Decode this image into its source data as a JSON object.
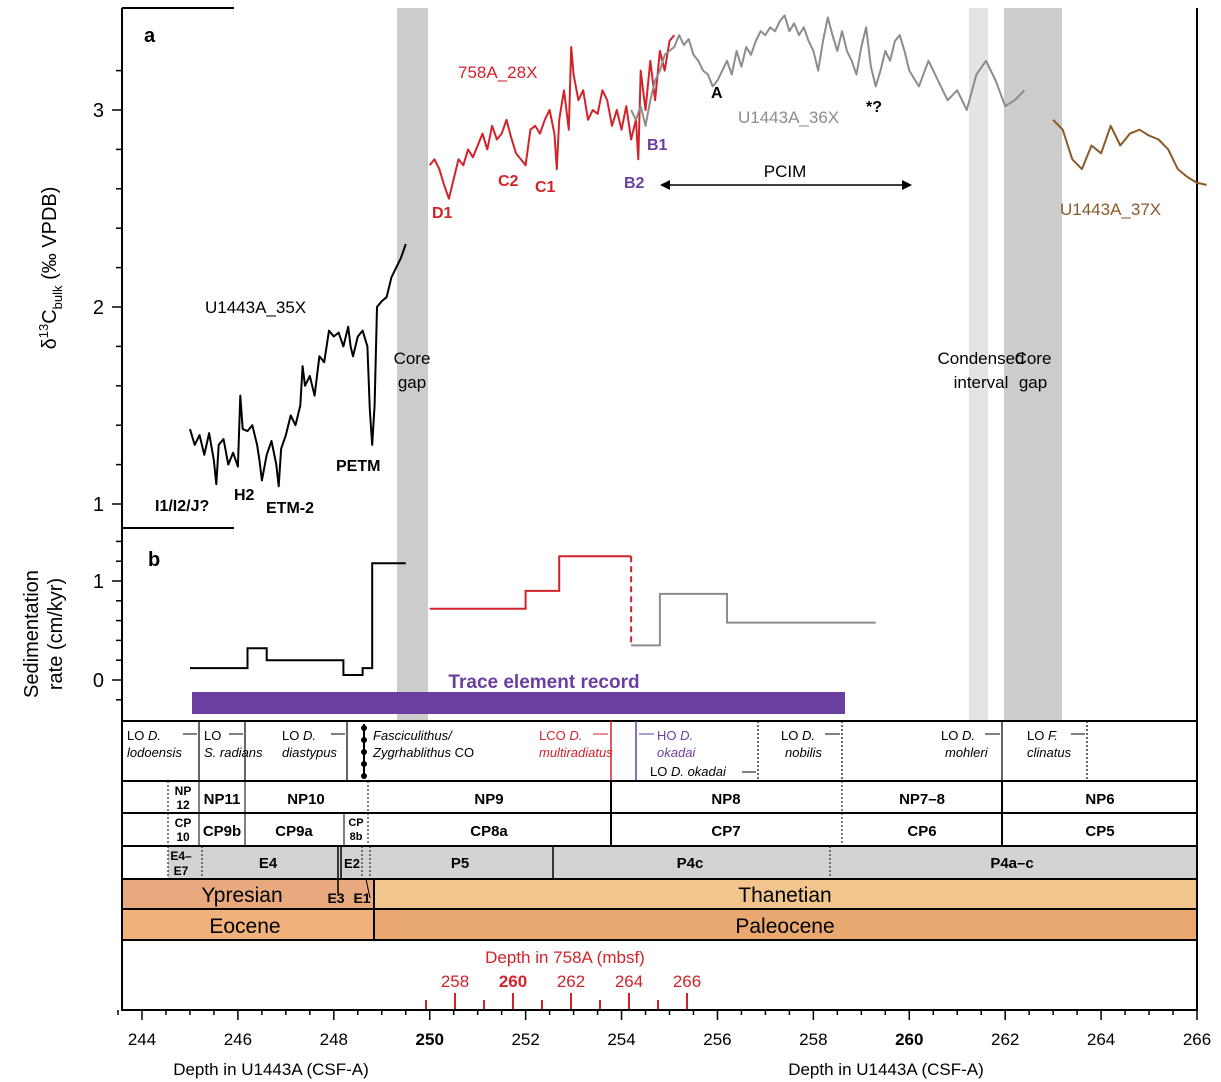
{
  "colors": {
    "black": "#000000",
    "red": "#d2232a",
    "grey": "#8c8c8c",
    "brown": "#8b5a2b",
    "purple": "#6b3fa0",
    "gap": "#cccccc",
    "condensed": "#e4e4e4",
    "biozone_fill": "#d3d3d3",
    "ypresian": "#e8a97e",
    "thanetian": "#f2c58c",
    "eocene": "#f0b27a",
    "paleocene": "#e8a870"
  },
  "labels": {
    "panel_a": "a",
    "panel_b": "b",
    "y_axis_a": "δ13Cbulk (‰ VPDB)",
    "y_axis_a_main": "δ",
    "y_axis_a_sup": "13",
    "y_axis_a_c": "C",
    "y_axis_a_sub": "bulk",
    "y_axis_a_unit": " (‰ VPDB)",
    "y_axis_b_line1": "Sedimentation",
    "y_axis_b_line2": "rate (cm/kyr)",
    "x_axis_left": "Depth in U1443A (CSF-A)",
    "x_axis_right": "Depth in U1443A (CSF-A)",
    "depth_758A": "Depth in 758A (mbsf)",
    "core_gap_1a": "Core",
    "core_gap_1b": "gap",
    "condensed_a": "Condensed",
    "condensed_b": "interval",
    "core_gap_2a": "Core",
    "core_gap_2b": "gap",
    "trace": "Trace element record",
    "pcim": "PCIM"
  },
  "events": {
    "I1": "I1/I2/J?",
    "H2": "H2",
    "ETM2": "ETM-2",
    "PETM": "PETM",
    "D1": "D1",
    "C2": "C2",
    "C1": "C1",
    "B2": "B2",
    "B1": "B1",
    "A": "A",
    "star": "*?"
  },
  "series_labels": {
    "s35": "U1443A_35X",
    "s28": "758A_28X",
    "s36": "U1443A_36X",
    "s37": "U1443A_37X"
  },
  "nanno_events": {
    "lodoensis_lo": "LO ",
    "lodoensis_sp": "D.",
    "lodoensis_sp2": "lodoensis",
    "radians_lo": "LO",
    "radians_sp": "S. radians",
    "diastypus_lo": "LO ",
    "diastypus_sp": "D.",
    "diastypus_sp2": "diastypus",
    "co_sp": "Fasciculithus/",
    "co_sp2": "Zygrhablithus",
    "co_tail": " CO",
    "mult_lco": "LCO ",
    "mult_sp": "D.",
    "mult_sp2": "multiradiatus",
    "okadai_ho": "HO ",
    "okadai_sp": "D.",
    "okadai_sp2": "okadai",
    "okadai_lo": "LO ",
    "okadai_lo_sp": "D. okadai",
    "nobilis_lo": "LO ",
    "nobilis_sp": "D.",
    "nobilis_sp2": "nobilis",
    "mohleri_lo": "LO ",
    "mohleri_sp": "D.",
    "mohleri_sp2": "mohleri",
    "clinatus_lo": "LO ",
    "clinatus_sp": "F.",
    "clinatus_sp2": "clinatus"
  },
  "zones": {
    "np": [
      "NP",
      "12",
      "NP11",
      "NP10",
      "NP9",
      "NP8",
      "NP7–8",
      "NP6"
    ],
    "cp": [
      "CP",
      "10",
      "CP9b",
      "CP9a",
      "CP",
      "8b",
      "CP8a",
      "CP7",
      "CP6",
      "CP5"
    ],
    "p": [
      "E4–",
      "E7",
      "E4",
      "E2",
      "P5",
      "P4c",
      "P4a–c"
    ],
    "stage": [
      "Ypresian",
      "E3",
      "E1",
      "Thanetian"
    ],
    "epoch": [
      "Eocene",
      "Paleocene"
    ]
  },
  "chart_data": [
    {
      "type": "line",
      "panel": "a",
      "xlabel": "Depth in U1443A (CSF-A)",
      "ylabel": "δ13Cbulk (‰ VPDB)",
      "xlim": [
        243.5,
        266
      ],
      "ylim": [
        0.9,
        3.5
      ],
      "x_ticks": [
        244,
        246,
        248,
        250,
        252,
        254,
        256,
        258,
        260,
        262,
        264,
        266
      ],
      "y_ticks": [
        1,
        2,
        3
      ],
      "series": [
        {
          "name": "U1443A_35X",
          "color": "#000000",
          "points": [
            [
              245.0,
              1.38
            ],
            [
              245.1,
              1.3
            ],
            [
              245.2,
              1.35
            ],
            [
              245.3,
              1.25
            ],
            [
              245.4,
              1.36
            ],
            [
              245.5,
              1.22
            ],
            [
              245.55,
              1.1
            ],
            [
              245.6,
              1.3
            ],
            [
              245.7,
              1.33
            ],
            [
              245.8,
              1.2
            ],
            [
              245.9,
              1.26
            ],
            [
              246.0,
              1.19
            ],
            [
              246.05,
              1.55
            ],
            [
              246.1,
              1.38
            ],
            [
              246.2,
              1.37
            ],
            [
              246.3,
              1.4
            ],
            [
              246.4,
              1.3
            ],
            [
              246.45,
              1.22
            ],
            [
              246.5,
              1.12
            ],
            [
              246.6,
              1.25
            ],
            [
              246.7,
              1.32
            ],
            [
              246.8,
              1.2
            ],
            [
              246.85,
              1.09
            ],
            [
              246.9,
              1.28
            ],
            [
              247.0,
              1.35
            ],
            [
              247.1,
              1.45
            ],
            [
              247.2,
              1.4
            ],
            [
              247.3,
              1.5
            ],
            [
              247.35,
              1.7
            ],
            [
              247.4,
              1.6
            ],
            [
              247.5,
              1.65
            ],
            [
              247.6,
              1.55
            ],
            [
              247.7,
              1.75
            ],
            [
              247.8,
              1.72
            ],
            [
              247.9,
              1.88
            ],
            [
              248.0,
              1.85
            ],
            [
              248.1,
              1.87
            ],
            [
              248.2,
              1.8
            ],
            [
              248.3,
              1.9
            ],
            [
              248.35,
              1.8
            ],
            [
              248.4,
              1.75
            ],
            [
              248.5,
              1.85
            ],
            [
              248.6,
              1.88
            ],
            [
              248.7,
              1.8
            ],
            [
              248.75,
              1.48
            ],
            [
              248.8,
              1.3
            ],
            [
              248.85,
              1.5
            ],
            [
              248.9,
              2.0
            ],
            [
              249.0,
              2.03
            ],
            [
              249.1,
              2.05
            ],
            [
              249.2,
              2.15
            ],
            [
              249.3,
              2.2
            ],
            [
              249.4,
              2.25
            ],
            [
              249.5,
              2.32
            ]
          ]
        },
        {
          "name": "758A_28X",
          "color": "#d2232a",
          "points": [
            [
              250.0,
              2.72
            ],
            [
              250.1,
              2.75
            ],
            [
              250.2,
              2.7
            ],
            [
              250.3,
              2.62
            ],
            [
              250.4,
              2.55
            ],
            [
              250.5,
              2.65
            ],
            [
              250.6,
              2.75
            ],
            [
              250.7,
              2.72
            ],
            [
              250.8,
              2.8
            ],
            [
              250.9,
              2.76
            ],
            [
              251.0,
              2.82
            ],
            [
              251.1,
              2.88
            ],
            [
              251.2,
              2.8
            ],
            [
              251.3,
              2.92
            ],
            [
              251.4,
              2.85
            ],
            [
              251.5,
              2.88
            ],
            [
              251.6,
              2.95
            ],
            [
              251.7,
              2.86
            ],
            [
              251.8,
              2.78
            ],
            [
              251.9,
              2.75
            ],
            [
              252.0,
              2.72
            ],
            [
              252.1,
              2.9
            ],
            [
              252.2,
              2.92
            ],
            [
              252.3,
              2.88
            ],
            [
              252.4,
              2.95
            ],
            [
              252.5,
              3.0
            ],
            [
              252.6,
              2.88
            ],
            [
              252.65,
              2.7
            ],
            [
              252.7,
              2.95
            ],
            [
              252.8,
              3.1
            ],
            [
              252.9,
              2.9
            ],
            [
              252.95,
              3.32
            ],
            [
              253.0,
              3.18
            ],
            [
              253.1,
              3.05
            ],
            [
              253.2,
              3.1
            ],
            [
              253.3,
              2.95
            ],
            [
              253.4,
              3.0
            ],
            [
              253.5,
              2.98
            ],
            [
              253.6,
              3.1
            ],
            [
              253.7,
              3.05
            ],
            [
              253.8,
              2.92
            ],
            [
              253.9,
              3.0
            ],
            [
              254.0,
              2.9
            ],
            [
              254.1,
              3.02
            ],
            [
              254.2,
              2.85
            ],
            [
              254.3,
              2.95
            ],
            [
              254.35,
              2.75
            ],
            [
              254.4,
              3.2
            ],
            [
              254.5,
              3.0
            ],
            [
              254.6,
              3.25
            ],
            [
              254.7,
              3.05
            ],
            [
              254.8,
              3.3
            ],
            [
              254.9,
              3.2
            ],
            [
              255.0,
              3.35
            ],
            [
              255.1,
              3.38
            ]
          ]
        },
        {
          "name": "U1443A_36X",
          "color": "#8c8c8c",
          "points": [
            [
              254.2,
              3.0
            ],
            [
              254.3,
              2.95
            ],
            [
              254.4,
              3.02
            ],
            [
              254.5,
              2.92
            ],
            [
              254.6,
              3.05
            ],
            [
              254.7,
              3.15
            ],
            [
              254.8,
              3.2
            ],
            [
              254.9,
              3.28
            ],
            [
              255.0,
              3.3
            ],
            [
              255.1,
              3.32
            ],
            [
              255.2,
              3.38
            ],
            [
              255.3,
              3.33
            ],
            [
              255.4,
              3.36
            ],
            [
              255.5,
              3.28
            ],
            [
              255.6,
              3.25
            ],
            [
              255.7,
              3.2
            ],
            [
              255.8,
              3.18
            ],
            [
              255.9,
              3.12
            ],
            [
              256.0,
              3.15
            ],
            [
              256.1,
              3.2
            ],
            [
              256.2,
              3.25
            ],
            [
              256.3,
              3.18
            ],
            [
              256.4,
              3.3
            ],
            [
              256.5,
              3.22
            ],
            [
              256.6,
              3.32
            ],
            [
              256.7,
              3.28
            ],
            [
              256.8,
              3.35
            ],
            [
              256.9,
              3.4
            ],
            [
              257.0,
              3.38
            ],
            [
              257.1,
              3.42
            ],
            [
              257.2,
              3.4
            ],
            [
              257.3,
              3.45
            ],
            [
              257.4,
              3.48
            ],
            [
              257.5,
              3.4
            ],
            [
              257.6,
              3.44
            ],
            [
              257.7,
              3.38
            ],
            [
              257.8,
              3.42
            ],
            [
              257.9,
              3.35
            ],
            [
              258.0,
              3.3
            ],
            [
              258.1,
              3.2
            ],
            [
              258.2,
              3.35
            ],
            [
              258.3,
              3.47
            ],
            [
              258.4,
              3.38
            ],
            [
              258.5,
              3.3
            ],
            [
              258.6,
              3.4
            ],
            [
              258.7,
              3.3
            ],
            [
              258.8,
              3.25
            ],
            [
              258.9,
              3.18
            ],
            [
              259.0,
              3.32
            ],
            [
              259.1,
              3.42
            ],
            [
              259.2,
              3.22
            ],
            [
              259.3,
              3.12
            ],
            [
              259.4,
              3.2
            ],
            [
              259.5,
              3.3
            ],
            [
              259.6,
              3.25
            ],
            [
              259.7,
              3.35
            ],
            [
              259.8,
              3.38
            ],
            [
              259.9,
              3.3
            ],
            [
              260.0,
              3.2
            ],
            [
              260.2,
              3.12
            ],
            [
              260.4,
              3.25
            ],
            [
              260.6,
              3.15
            ],
            [
              260.8,
              3.05
            ],
            [
              261.0,
              3.1
            ],
            [
              261.2,
              3.0
            ],
            [
              261.4,
              3.18
            ],
            [
              261.6,
              3.25
            ],
            [
              261.8,
              3.15
            ],
            [
              262.0,
              3.02
            ],
            [
              262.2,
              3.05
            ],
            [
              262.4,
              3.1
            ]
          ]
        },
        {
          "name": "U1443A_37X",
          "color": "#8b5a2b",
          "points": [
            [
              263.0,
              2.95
            ],
            [
              263.2,
              2.9
            ],
            [
              263.4,
              2.75
            ],
            [
              263.6,
              2.7
            ],
            [
              263.8,
              2.82
            ],
            [
              264.0,
              2.78
            ],
            [
              264.2,
              2.92
            ],
            [
              264.4,
              2.82
            ],
            [
              264.6,
              2.88
            ],
            [
              264.8,
              2.9
            ],
            [
              265.0,
              2.87
            ],
            [
              265.2,
              2.85
            ],
            [
              265.4,
              2.8
            ],
            [
              265.6,
              2.7
            ],
            [
              265.8,
              2.66
            ],
            [
              266.0,
              2.63
            ],
            [
              266.2,
              2.62
            ]
          ]
        }
      ]
    },
    {
      "type": "line",
      "panel": "b",
      "xlabel": "Depth in U1443A (CSF-A)",
      "ylabel": "Sedimentation rate (cm/kyr)",
      "ylim": [
        -0.2,
        1.5
      ],
      "y_ticks": [
        0,
        1
      ],
      "series": [
        {
          "name": "U1443A_35X",
          "color": "#000000",
          "points": [
            [
              245.0,
              0.12
            ],
            [
              246.2,
              0.12
            ],
            [
              246.2,
              0.32
            ],
            [
              246.6,
              0.32
            ],
            [
              246.6,
              0.2
            ],
            [
              248.2,
              0.2
            ],
            [
              248.2,
              0.05
            ],
            [
              248.6,
              0.05
            ],
            [
              248.6,
              0.12
            ],
            [
              248.8,
              0.12
            ],
            [
              248.8,
              1.18
            ],
            [
              249.5,
              1.18
            ]
          ]
        },
        {
          "name": "758A_28X",
          "color": "#d2232a",
          "points": [
            [
              250.0,
              0.72
            ],
            [
              252.0,
              0.72
            ],
            [
              252.0,
              0.9
            ],
            [
              252.7,
              0.9
            ],
            [
              252.7,
              1.25
            ],
            [
              254.2,
              1.25
            ]
          ]
        },
        {
          "name": "U1443A_36X",
          "color": "#8c8c8c",
          "points": [
            [
              254.2,
              0.35
            ],
            [
              254.8,
              0.35
            ],
            [
              254.8,
              0.87
            ],
            [
              256.2,
              0.87
            ],
            [
              256.2,
              0.58
            ],
            [
              259.3,
              0.58
            ]
          ]
        }
      ]
    }
  ],
  "secondary_axis": {
    "label": "Depth in 758A (mbsf)",
    "ticks": [
      "258",
      "260",
      "262",
      "264",
      "266"
    ],
    "tick_values": [
      258,
      260,
      262,
      264,
      266
    ]
  }
}
